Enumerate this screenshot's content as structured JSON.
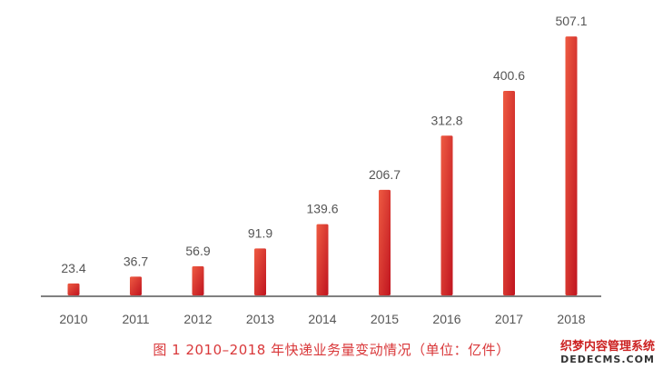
{
  "chart_data": {
    "type": "bar",
    "categories": [
      "2010",
      "2011",
      "2012",
      "2013",
      "2014",
      "2015",
      "2016",
      "2017",
      "2018"
    ],
    "values": [
      23.4,
      36.7,
      56.9,
      91.9,
      139.6,
      206.7,
      312.8,
      400.6,
      507.1
    ],
    "value_labels": [
      "23.4",
      "36.7",
      "56.9",
      "91.9",
      "139.6",
      "206.7",
      "312.8",
      "400.6",
      "507.1"
    ],
    "title": "图 1  2010–2018 年快递业务量变动情况（单位：亿件）",
    "xlabel": "",
    "ylabel": "",
    "ylim": [
      0,
      560
    ],
    "grid": false,
    "legend": "none",
    "colors": {
      "bar_light": "#ee5b42",
      "bar_dark": "#c0141f",
      "axis": "#808080",
      "label": "#555555"
    }
  },
  "watermark": {
    "line1": "织梦内容管理系统",
    "line2": "DEDECMS.COM"
  }
}
